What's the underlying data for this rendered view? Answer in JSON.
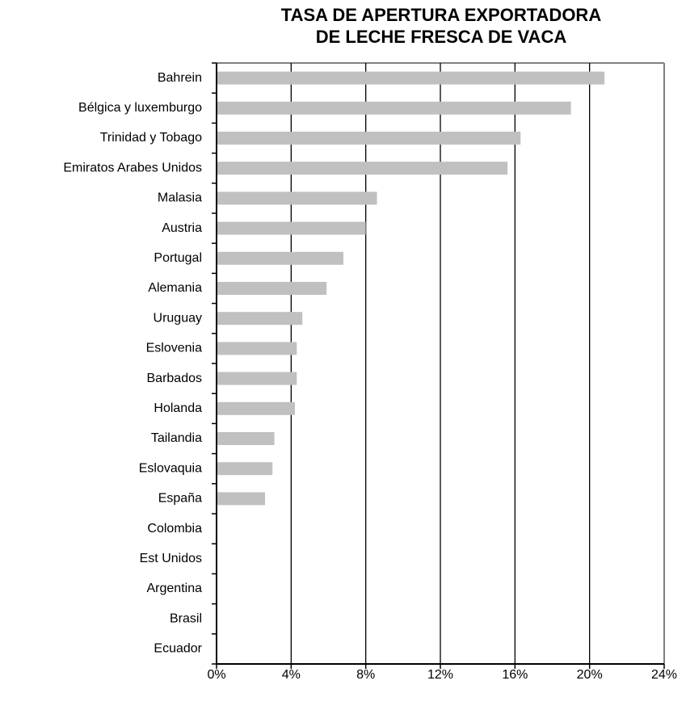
{
  "chart_data": {
    "type": "bar",
    "orientation": "horizontal",
    "title": [
      "TASA DE APERTURA EXPORTADORA",
      "DE LECHE FRESCA DE VACA"
    ],
    "categories": [
      "Bahrein",
      "Bélgica y luxemburgo",
      "Trinidad y Tobago",
      "Emiratos Arabes Unidos",
      "Malasia",
      "Austria",
      "Portugal",
      "Alemania",
      "Uruguay",
      "Eslovenia",
      "Barbados",
      "Holanda",
      "Tailandia",
      "Eslovaquia",
      "España",
      "Colombia",
      "Est Unidos",
      "Argentina",
      "Brasil",
      "Ecuador"
    ],
    "values": [
      20.8,
      19.0,
      16.3,
      15.6,
      8.6,
      8.0,
      6.8,
      5.9,
      4.6,
      4.3,
      4.3,
      4.2,
      3.1,
      3.0,
      2.6,
      0,
      0,
      0,
      0,
      0
    ],
    "color": "#c0c0c0",
    "xlim": [
      0,
      24
    ],
    "xticks": [
      {
        "value": 0,
        "label": "0%"
      },
      {
        "value": 4,
        "label": "4%"
      },
      {
        "value": 8,
        "label": "8%"
      },
      {
        "value": 12,
        "label": "12%"
      },
      {
        "value": 16,
        "label": "16%"
      },
      {
        "value": 20,
        "label": "20%"
      },
      {
        "value": 24,
        "label": "24%"
      }
    ],
    "grid": true
  }
}
